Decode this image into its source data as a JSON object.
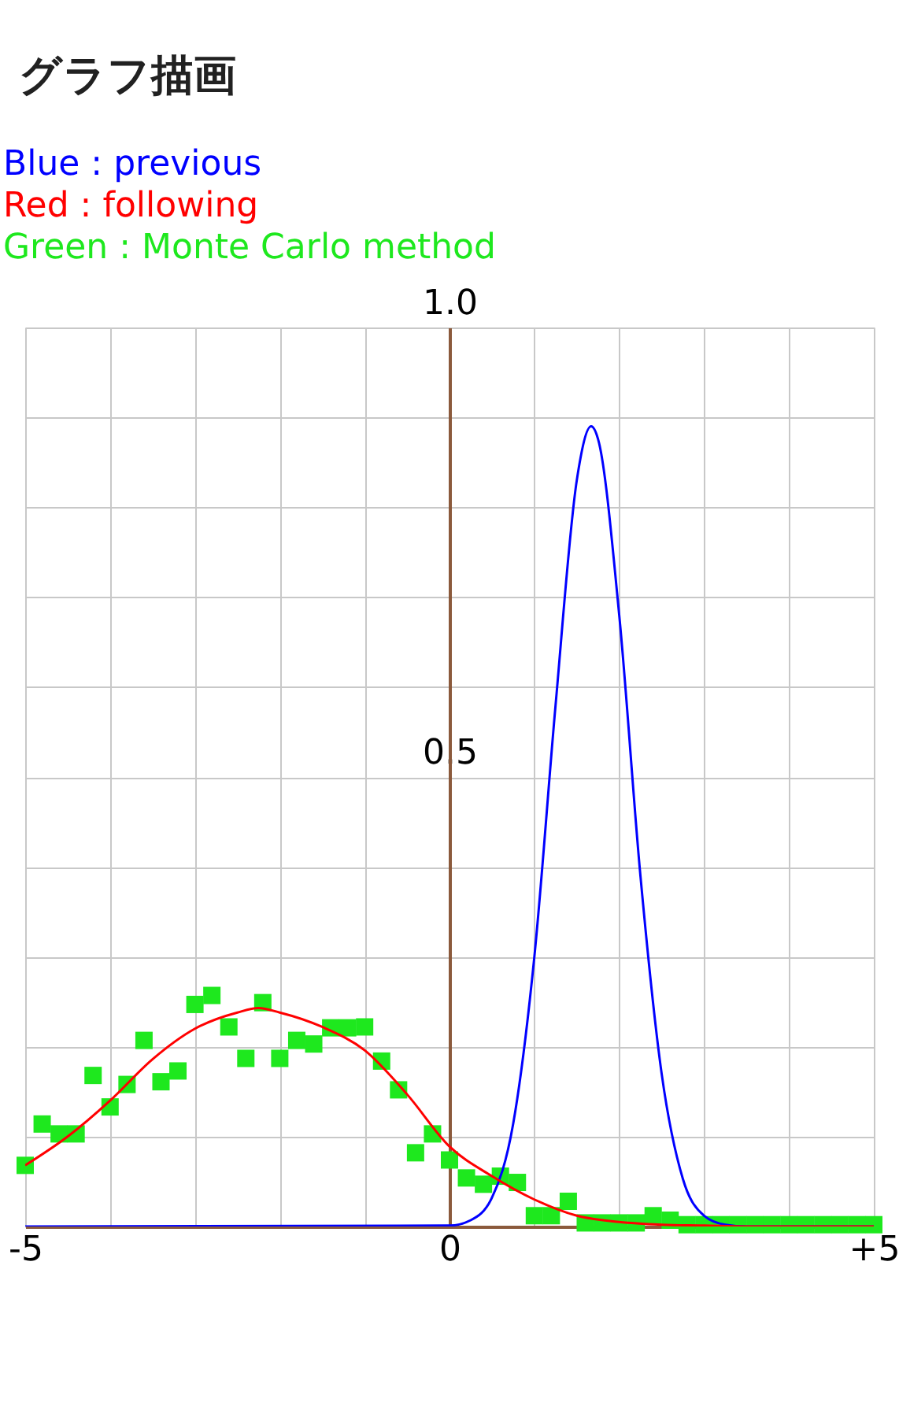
{
  "chart_data": {
    "type": "line",
    "title": "グラフ描画",
    "xlim": [
      -5,
      5
    ],
    "ylim": [
      0,
      1
    ],
    "xticks": [
      {
        "value": -5,
        "label": "-5"
      },
      {
        "value": -4,
        "label": null
      },
      {
        "value": -3,
        "label": null
      },
      {
        "value": -2,
        "label": null
      },
      {
        "value": -1,
        "label": null
      },
      {
        "value": 0,
        "label": "0"
      },
      {
        "value": 1,
        "label": null
      },
      {
        "value": 2,
        "label": null
      },
      {
        "value": 3,
        "label": null
      },
      {
        "value": 4,
        "label": null
      },
      {
        "value": 5,
        "label": "+5"
      }
    ],
    "yticks": [
      {
        "value": 0,
        "label": null
      },
      {
        "value": 0.1,
        "label": null
      },
      {
        "value": 0.2,
        "label": null
      },
      {
        "value": 0.3,
        "label": null
      },
      {
        "value": 0.4,
        "label": null
      },
      0.5,
      {
        "value": 0.6,
        "label": null
      },
      {
        "value": 0.7,
        "label": null
      },
      {
        "value": 0.8,
        "label": null
      },
      {
        "value": 0.9,
        "label": null
      },
      {
        "value": 1,
        "label": "1.0"
      }
    ],
    "grid": true,
    "legend": "top left",
    "series": [
      {
        "name": "Blue : previous",
        "color": "#0000ff",
        "marker": "none",
        "line_style": "solid",
        "x": [
          -5,
          0,
          0.25,
          0.5,
          0.75,
          1.0,
          1.25,
          1.5,
          1.67,
          1.75,
          2.0,
          2.25,
          2.5,
          2.75,
          3.0,
          3.25,
          3.5,
          5
        ],
        "values": [
          0,
          0.001,
          0.007,
          0.032,
          0.114,
          0.3,
          0.58,
          0.83,
          0.89,
          0.876,
          0.68,
          0.39,
          0.17,
          0.053,
          0.012,
          0.002,
          0,
          0
        ]
      },
      {
        "name": "Red : following",
        "color": "#ff0000",
        "marker": "none",
        "line_style": "solid",
        "x": [
          -5,
          -4.5,
          -4,
          -3.5,
          -3,
          -2.5,
          -2.25,
          -2,
          -1.5,
          -1,
          -0.5,
          0,
          0.5,
          1,
          1.5,
          2,
          2.5,
          3,
          3.5,
          5
        ],
        "values": [
          0.068,
          0.1,
          0.14,
          0.186,
          0.22,
          0.238,
          0.243,
          0.238,
          0.222,
          0.196,
          0.147,
          0.089,
          0.056,
          0.03,
          0.012,
          0.005,
          0.002,
          0.001,
          0,
          0
        ]
      },
      {
        "name": "Green : Monte Carlo method",
        "type": "scatter",
        "color": "#1ee81e",
        "marker": "square",
        "x": [
          -5,
          -4.8,
          -4.6,
          -4.4,
          -4.2,
          -4,
          -3.8,
          -3.6,
          -3.4,
          -3.2,
          -3,
          -2.8,
          -2.6,
          -2.4,
          -2.2,
          -2,
          -1.8,
          -1.6,
          -1.4,
          -1.2,
          -1,
          -0.8,
          -0.6,
          -0.4,
          -0.2,
          0,
          0.2,
          0.4,
          0.6,
          0.8,
          1,
          1.2,
          1.4,
          1.6,
          1.8,
          2,
          2.2,
          2.4,
          2.6,
          2.8,
          3,
          3.2,
          3.4,
          3.6,
          3.8,
          4,
          4.2,
          4.4,
          4.6,
          4.8,
          5
        ],
        "values": [
          0.068,
          0.114,
          0.103,
          0.103,
          0.168,
          0.133,
          0.158,
          0.207,
          0.161,
          0.173,
          0.247,
          0.257,
          0.222,
          0.187,
          0.249,
          0.187,
          0.207,
          0.203,
          0.221,
          0.221,
          0.222,
          0.184,
          0.152,
          0.082,
          0.103,
          0.074,
          0.054,
          0.047,
          0.056,
          0.049,
          0.012,
          0.012,
          0.028,
          0.004,
          0.004,
          0.004,
          0.004,
          0.012,
          0.007,
          0.002,
          0.002,
          0.002,
          0.002,
          0.002,
          0.002,
          0.002,
          0.002,
          0.002,
          0.002,
          0.002,
          0.002
        ]
      }
    ]
  }
}
